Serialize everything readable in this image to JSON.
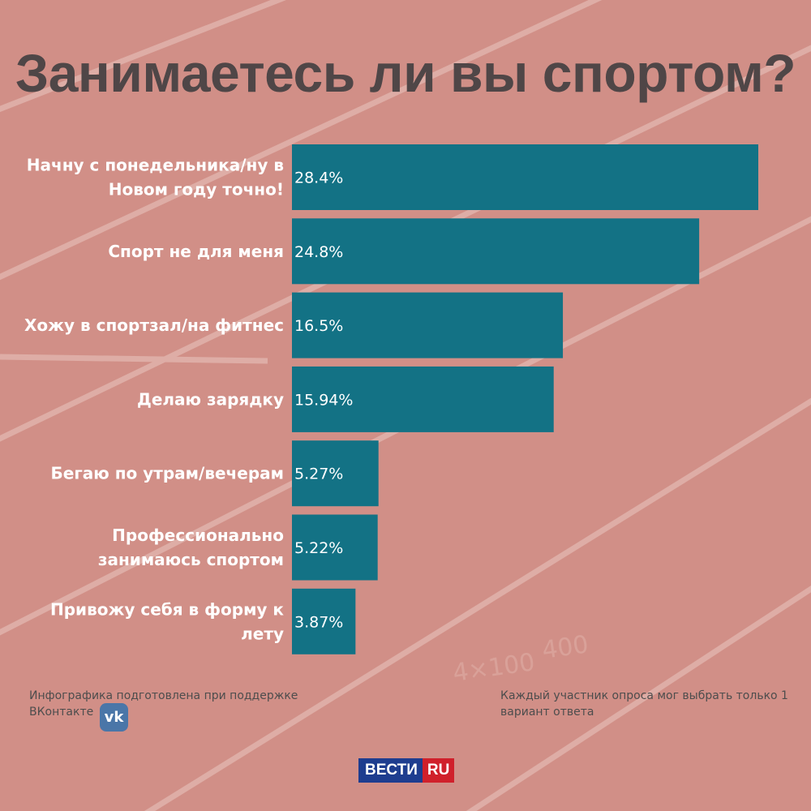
{
  "title": "Занимаетесь ли вы спортом?",
  "colors": {
    "background": "#cf8d84",
    "bar": "#137285",
    "label_text": "#ffffff",
    "value_text": "#ffffff",
    "title_text": "#4f4647"
  },
  "chart_data": {
    "type": "bar",
    "orientation": "horizontal",
    "title": "Занимаетесь ли вы спортом?",
    "categories": [
      [
        "Начну с понедельника/ну в",
        "Новом году точно!"
      ],
      [
        "Спорт не для меня"
      ],
      [
        "Хожу в спортзал/на фитнес"
      ],
      [
        "Делаю зарядку"
      ],
      [
        "Бегаю по утрам/вечерам"
      ],
      [
        "Профессионально",
        "занимаюсь спортом"
      ],
      [
        "Привожу себя в форму к",
        "лету"
      ]
    ],
    "values": [
      28.4,
      24.8,
      16.5,
      15.94,
      5.27,
      5.22,
      3.87
    ],
    "value_labels": [
      "28.4%",
      "24.8%",
      "16.5%",
      "15.94%",
      "5.27%",
      "5.22%",
      "3.87%"
    ],
    "unit": "%",
    "grid": false,
    "legend": "none"
  },
  "footnotes": {
    "left": "Инфографика подготовлена при поддержке ВКонтакте",
    "right": "Каждый участник опроса мог выбрать только 1 вариант ответа"
  },
  "logos": {
    "vk": "vk",
    "vesti_main": "ВЕСТИ",
    "vesti_ru": "RU"
  }
}
